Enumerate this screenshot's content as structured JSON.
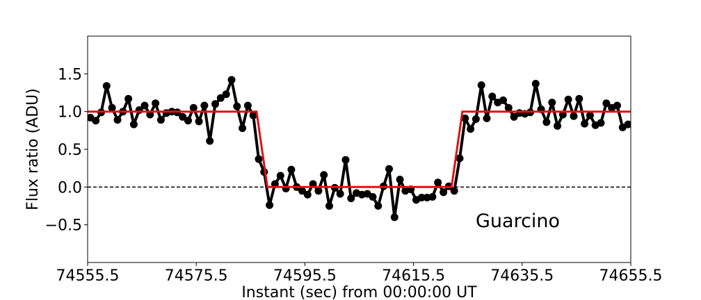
{
  "chart_data": {
    "type": "line",
    "title": "",
    "xlabel": "Instant (sec) from 00:00:00 UT",
    "ylabel": "Flux ratio (ADU)",
    "xlim": [
      74555.5,
      74655.5
    ],
    "ylim": [
      -1.0,
      2.0
    ],
    "x_ticks": [
      74555.5,
      74575.5,
      74595.5,
      74615.5,
      74635.5,
      74655.5
    ],
    "x_tick_labels": [
      "74555.5",
      "74575.5",
      "74595.5",
      "74615.5",
      "74635.5",
      "74655.5"
    ],
    "y_ticks": [
      -0.5,
      0.0,
      0.5,
      1.0,
      1.5
    ],
    "y_tick_labels": [
      "−0.5",
      "0.0",
      "0.5",
      "1.0",
      "1.5"
    ],
    "grid": false,
    "annotation": "Guarcino",
    "reference_line": {
      "y": 0.0,
      "style": "dashed",
      "color": "#000000"
    },
    "series": [
      {
        "kind": "observed",
        "color": "#000000",
        "marker": "circle",
        "x": [
          74556.0,
          74557.0,
          74558.0,
          74559.0,
          74560.0,
          74561.0,
          74562.0,
          74563.0,
          74564.0,
          74565.0,
          74566.0,
          74567.0,
          74568.0,
          74569.0,
          74570.0,
          74571.0,
          74572.0,
          74573.0,
          74574.0,
          74575.0,
          74576.0,
          74577.0,
          74578.0,
          74579.0,
          74580.0,
          74581.0,
          74582.0,
          74583.0,
          74584.0,
          74585.0,
          74586.0,
          74587.0,
          74588.0,
          74589.0,
          74590.0,
          74591.0,
          74592.0,
          74593.0,
          74594.0,
          74595.0,
          74596.0,
          74597.0,
          74598.0,
          74599.0,
          74600.0,
          74601.0,
          74602.0,
          74603.0,
          74604.0,
          74605.0,
          74606.0,
          74607.0,
          74608.0,
          74609.0,
          74610.0,
          74611.0,
          74612.0,
          74613.0,
          74614.0,
          74615.0,
          74616.0,
          74617.0,
          74618.0,
          74619.0,
          74620.0,
          74621.0,
          74622.0,
          74623.0,
          74624.0,
          74625.0,
          74626.0,
          74627.0,
          74628.0,
          74629.0,
          74630.0,
          74631.0,
          74632.0,
          74633.0,
          74634.0,
          74635.0,
          74636.0,
          74637.0,
          74638.0,
          74639.0,
          74640.0,
          74641.0,
          74642.0,
          74643.0,
          74644.0,
          74645.0,
          74646.0,
          74647.0,
          74648.0,
          74649.0,
          74650.0,
          74651.0,
          74652.0,
          74653.0,
          74654.0,
          74655.0
        ],
        "y": [
          0.92,
          0.88,
          0.99,
          1.34,
          1.05,
          0.89,
          1.0,
          1.17,
          0.83,
          1.02,
          1.08,
          0.96,
          1.11,
          0.89,
          0.98,
          1.0,
          0.99,
          0.93,
          0.88,
          1.05,
          0.87,
          1.08,
          0.61,
          1.1,
          1.18,
          1.23,
          1.42,
          1.07,
          0.78,
          1.08,
          0.95,
          0.37,
          0.2,
          -0.24,
          0.04,
          0.15,
          -0.02,
          0.23,
          0.0,
          -0.05,
          -0.1,
          0.04,
          -0.05,
          0.16,
          -0.25,
          -0.01,
          -0.09,
          0.36,
          -0.15,
          -0.08,
          -0.1,
          -0.09,
          -0.13,
          -0.25,
          0.01,
          0.24,
          -0.4,
          0.1,
          -0.05,
          -0.03,
          -0.17,
          -0.14,
          -0.14,
          -0.13,
          0.06,
          -0.07,
          0.01,
          -0.05,
          0.38,
          0.91,
          0.77,
          0.9,
          1.35,
          0.91,
          1.2,
          1.12,
          1.15,
          1.05,
          0.93,
          0.98,
          0.97,
          0.99,
          1.37,
          1.03,
          0.86,
          1.12,
          0.81,
          0.96,
          1.16,
          0.94,
          1.17,
          0.84,
          0.95,
          0.82,
          0.85,
          1.11,
          1.05,
          1.08,
          0.79,
          0.83
        ]
      },
      {
        "kind": "model",
        "color": "#e01010",
        "marker": "none",
        "x": [
          74555.5,
          74586.6,
          74588.6,
          74622.5,
          74624.5,
          74655.5
        ],
        "y": [
          1.0,
          1.0,
          0.0,
          0.0,
          1.0,
          1.0
        ]
      }
    ]
  }
}
